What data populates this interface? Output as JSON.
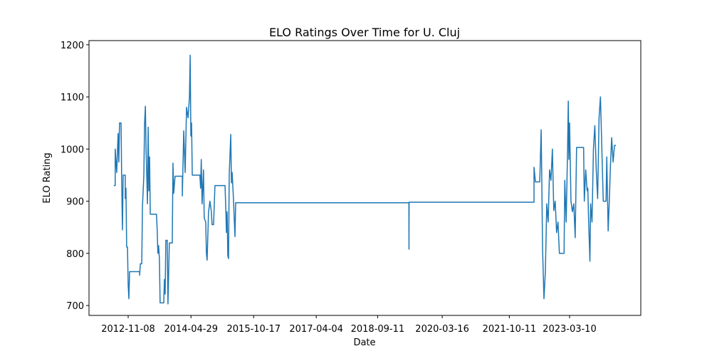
{
  "chart_data": {
    "type": "line",
    "title": "ELO Ratings Over Time for U. Cluj",
    "x_label": "Date",
    "y_label": "ELO Rating",
    "x": [
      "2012-07-08",
      "2012-07-20",
      "2012-07-20",
      "2012-08-02",
      "2012-08-14",
      "2012-08-20",
      "2012-08-26",
      "2012-09-08",
      "2012-09-14",
      "2012-09-20",
      "2012-09-26",
      "2012-10-14",
      "2012-10-14",
      "2012-10-20",
      "2012-10-26",
      "2012-11-02",
      "2012-11-08",
      "2012-11-14",
      "2012-11-20",
      "2013-02-14",
      "2013-02-14",
      "2013-02-20",
      "2013-03-04",
      "2013-03-10",
      "2013-03-22",
      "2013-03-28",
      "2013-04-04",
      "2013-04-10",
      "2013-04-22",
      "2013-04-28",
      "2013-05-04",
      "2013-05-10",
      "2013-05-16",
      "2013-07-08",
      "2013-07-14",
      "2013-07-20",
      "2013-07-26",
      "2013-08-02",
      "2013-08-08",
      "2013-09-08",
      "2013-09-14",
      "2013-09-20",
      "2013-09-26",
      "2013-10-08",
      "2013-10-14",
      "2013-10-26",
      "2013-11-20",
      "2013-11-26",
      "2013-12-02",
      "2013-12-14",
      "2014-02-14",
      "2014-02-14",
      "2014-02-26",
      "2014-03-10",
      "2014-03-22",
      "2014-04-04",
      "2014-04-16",
      "2014-04-22",
      "2014-04-28",
      "2014-05-04",
      "2014-05-10",
      "2014-07-14",
      "2014-07-20",
      "2014-07-26",
      "2014-08-02",
      "2014-08-14",
      "2014-08-20",
      "2014-09-02",
      "2014-09-08",
      "2014-09-14",
      "2014-09-26",
      "2014-10-08",
      "2014-10-20",
      "2014-10-26",
      "2014-11-08",
      "2014-11-20",
      "2015-02-14",
      "2015-02-20",
      "2015-02-26",
      "2015-03-04",
      "2015-03-10",
      "2015-03-16",
      "2015-03-22",
      "2015-04-04",
      "2015-04-10",
      "2015-04-16",
      "2015-04-28",
      "2015-05-10",
      "2015-05-16",
      "2019-06-05",
      "2019-06-06",
      "2019-06-07",
      "2022-05-10",
      "2022-05-10",
      "2022-05-22",
      "2022-06-28",
      "2022-07-10",
      "2022-07-16",
      "2022-07-22",
      "2022-08-03",
      "2022-08-15",
      "2022-08-27",
      "2022-09-08",
      "2022-09-20",
      "2022-10-02",
      "2022-10-14",
      "2022-10-26",
      "2022-11-07",
      "2022-11-19",
      "2022-12-01",
      "2022-12-13",
      "2023-01-22",
      "2023-01-28",
      "2023-02-09",
      "2023-02-21",
      "2023-02-27",
      "2023-03-04",
      "2023-03-10",
      "2023-03-22",
      "2023-04-03",
      "2023-04-15",
      "2023-04-27",
      "2023-05-09",
      "2023-07-08",
      "2023-07-14",
      "2023-07-26",
      "2023-08-07",
      "2023-08-13",
      "2023-08-19",
      "2023-08-31",
      "2023-09-06",
      "2023-09-18",
      "2023-09-30",
      "2023-10-12",
      "2023-10-24",
      "2023-11-05",
      "2023-11-17",
      "2023-11-29",
      "2023-12-11",
      "2023-12-23",
      "2024-01-16",
      "2024-01-22",
      "2024-02-03",
      "2024-02-15",
      "2024-02-21",
      "2024-03-04",
      "2024-03-16",
      "2024-03-28",
      "2024-04-09"
    ],
    "series": [
      {
        "name": "U. Cluj",
        "color": "#1f77b4",
        "values": [
          930,
          930,
          1000,
          955,
          1030,
          975,
          1050,
          1050,
          930,
          845,
          950,
          950,
          905,
          925,
          812,
          812,
          740,
          713,
          765,
          765,
          758,
          780,
          780,
          890,
          950,
          1048,
          1082,
          1000,
          895,
          1042,
          920,
          985,
          875,
          875,
          845,
          800,
          815,
          790,
          705,
          705,
          750,
          722,
          825,
          825,
          703,
          820,
          820,
          973,
          915,
          948,
          948,
          910,
          1035,
          955,
          1080,
          1060,
          1100,
          1180,
          1025,
          1050,
          950,
          950,
          925,
          980,
          895,
          960,
          868,
          860,
          800,
          787,
          880,
          900,
          880,
          855,
          855,
          930,
          930,
          890,
          840,
          880,
          795,
          790,
          950,
          1028,
          935,
          955,
          900,
          832,
          897,
          897,
          808,
          898,
          898,
          965,
          937,
          937,
          1037,
          930,
          810,
          713,
          765,
          895,
          860,
          960,
          940,
          1000,
          882,
          900,
          840,
          860,
          800,
          800,
          940,
          860,
          1000,
          1092,
          980,
          1050,
          900,
          880,
          895,
          830,
          1003,
          1003,
          900,
          960,
          920,
          925,
          870,
          785,
          895,
          860,
          1000,
          1045,
          960,
          905,
          1060,
          1100,
          1000,
          900,
          900,
          985,
          843,
          915,
          960,
          1022,
          975,
          1007,
          1007
        ]
      }
    ],
    "xlim": [
      "2011-12-09",
      "2024-11-08"
    ],
    "xticks": [
      "2012-11-08",
      "2014-04-29",
      "2015-10-17",
      "2017-04-04",
      "2018-09-11",
      "2020-03-16",
      "2021-10-11",
      "2023-03-10"
    ],
    "ylim": [
      681,
      1208
    ],
    "yticks": [
      700,
      800,
      900,
      1000,
      1100,
      1200
    ]
  }
}
